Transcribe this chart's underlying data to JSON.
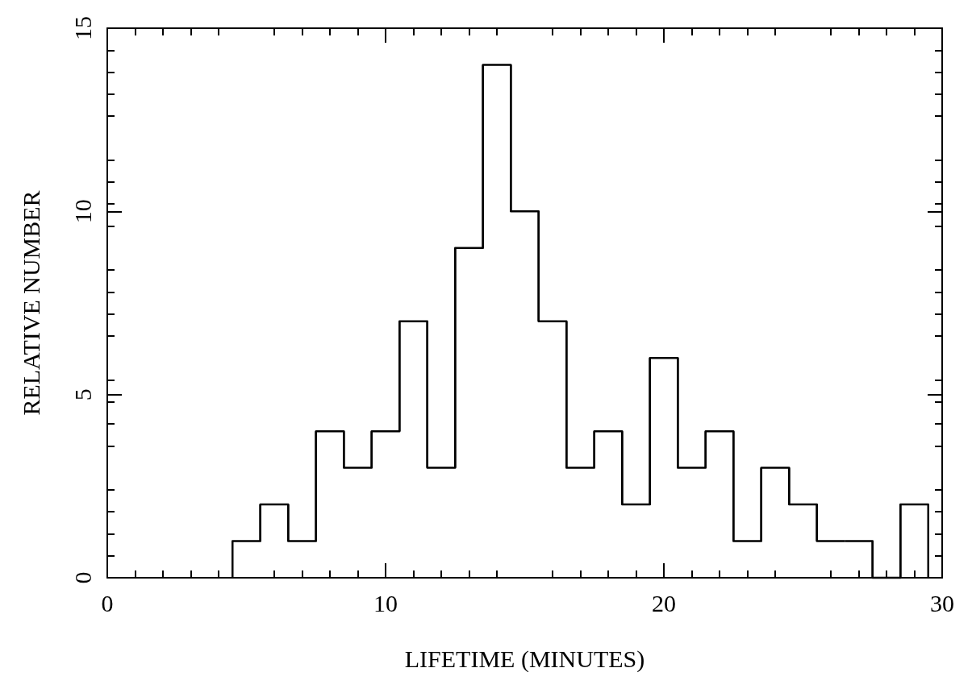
{
  "chart_data": {
    "type": "histogram",
    "xlabel": "LIFETIME (MINUTES)",
    "ylabel": "RELATIVE NUMBER",
    "bins": [
      4.5,
      5.5,
      6.5,
      7.5,
      8.5,
      9.5,
      10.5,
      11.5,
      12.5,
      13.5,
      14.5,
      15.5,
      16.5,
      17.5,
      18.5,
      19.5,
      20.5,
      21.5,
      22.5,
      23.5,
      24.5,
      25.5,
      26.5,
      27.5,
      28.5,
      29.5
    ],
    "values": [
      1,
      2,
      1,
      4,
      3,
      4,
      7,
      3,
      9,
      14,
      10,
      7,
      3,
      4,
      2,
      6,
      3,
      4,
      1,
      3,
      2,
      1,
      1,
      0,
      2
    ],
    "color": "#000000",
    "xlim": [
      0,
      30
    ],
    "xticks": [
      0,
      10,
      20,
      30
    ],
    "ylim": [
      0,
      15
    ],
    "yticks": [
      0,
      5,
      10,
      15
    ],
    "grid": false
  }
}
